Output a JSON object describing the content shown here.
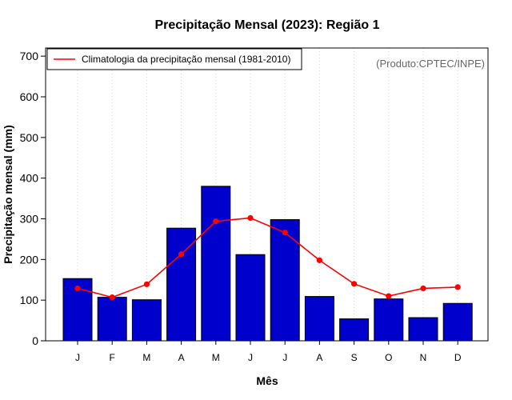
{
  "chart_data": {
    "type": "bar",
    "title": "Precipitação Mensal (2023): Região 1",
    "xlabel": "Mês",
    "ylabel": "Precipitação mensal (mm)",
    "ylim": [
      0,
      720
    ],
    "yticks": [
      0,
      100,
      200,
      300,
      400,
      500,
      600,
      700
    ],
    "grid": true,
    "categories": [
      "J",
      "F",
      "M",
      "A",
      "M",
      "J",
      "J",
      "A",
      "S",
      "O",
      "N",
      "D"
    ],
    "series": [
      {
        "name": "Precipitação mensal (2023)",
        "type": "bar",
        "color": "#0000CD",
        "values": [
          153,
          107,
          101,
          277,
          380,
          212,
          298,
          109,
          54,
          103,
          57,
          92
        ]
      },
      {
        "name": "Climatologia da precipitação mensal (1981-2010)",
        "type": "line",
        "color": "#FF0000",
        "values": [
          129,
          107,
          139,
          213,
          294,
          302,
          266,
          198,
          140,
          110,
          129,
          132
        ]
      }
    ],
    "legend": {
      "position": "top-left",
      "entries": [
        "Climatologia da precipitação mensal (1981-2010)"
      ]
    },
    "annotation": "(Produto:CPTEC/INPE)"
  }
}
